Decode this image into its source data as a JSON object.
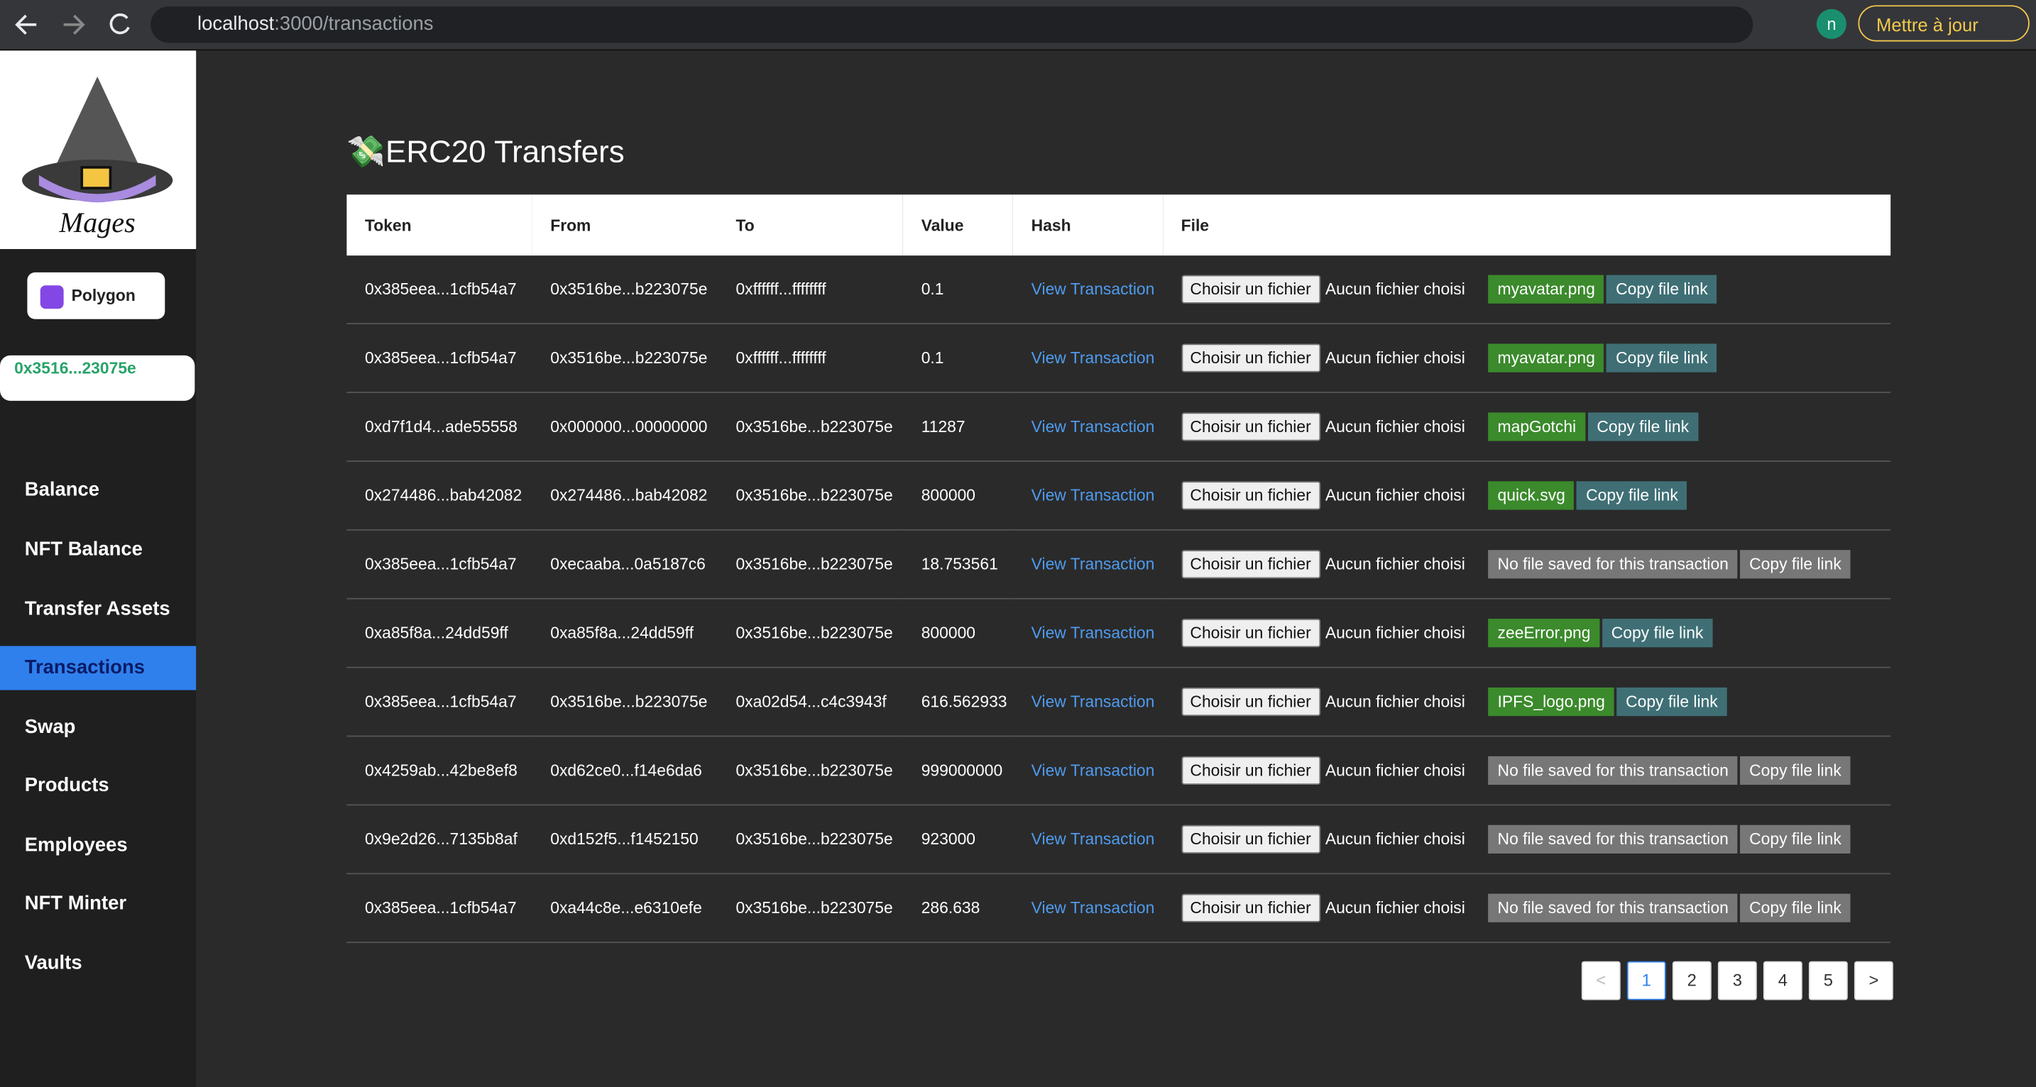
{
  "browser": {
    "url_host": "localhost",
    "url_path": ":3000/transactions",
    "update_button": "Mettre à jour",
    "profile_initial": "n"
  },
  "sidebar": {
    "logo_text": "Mages",
    "network": "Polygon",
    "address": "0x3516...23075e",
    "nav": [
      "Balance",
      "NFT Balance",
      "Transfer Assets",
      "Transactions",
      "Swap",
      "Products",
      "Employees",
      "NFT Minter",
      "Vaults"
    ],
    "active_nav": 3
  },
  "main": {
    "title": "ERC20 Transfers",
    "table": {
      "headers": [
        "Token",
        "From",
        "To",
        "Value",
        "Hash",
        "File"
      ],
      "rows": [
        {
          "token": "0x385eea...1cfb54a7",
          "from": "0x3516be...b223075e",
          "to": "0xffffff...ffffffff",
          "value": "0.1",
          "hash": "View Transaction",
          "choose": "Choisir un fichier",
          "no_file": "Aucun fichier choisi",
          "file": "myavatar.png",
          "file_saved": true,
          "copy": "Copy file link"
        },
        {
          "token": "0x385eea...1cfb54a7",
          "from": "0x3516be...b223075e",
          "to": "0xffffff...ffffffff",
          "value": "0.1",
          "hash": "View Transaction",
          "choose": "Choisir un fichier",
          "no_file": "Aucun fichier choisi",
          "file": "myavatar.png",
          "file_saved": true,
          "copy": "Copy file link"
        },
        {
          "token": "0xd7f1d4...ade55558",
          "from": "0x000000...00000000",
          "to": "0x3516be...b223075e",
          "value": "11287",
          "hash": "View Transaction",
          "choose": "Choisir un fichier",
          "no_file": "Aucun fichier choisi",
          "file": "mapGotchi",
          "file_saved": true,
          "copy": "Copy file link"
        },
        {
          "token": "0x274486...bab42082",
          "from": "0x274486...bab42082",
          "to": "0x3516be...b223075e",
          "value": "800000",
          "hash": "View Transaction",
          "choose": "Choisir un fichier",
          "no_file": "Aucun fichier choisi",
          "file": "quick.svg",
          "file_saved": true,
          "copy": "Copy file link"
        },
        {
          "token": "0x385eea...1cfb54a7",
          "from": "0xecaaba...0a5187c6",
          "to": "0x3516be...b223075e",
          "value": "18.753561",
          "hash": "View Transaction",
          "choose": "Choisir un fichier",
          "no_file": "Aucun fichier choisi",
          "file": "No file saved for this transaction",
          "file_saved": false,
          "copy": "Copy file link"
        },
        {
          "token": "0xa85f8a...24dd59ff",
          "from": "0xa85f8a...24dd59ff",
          "to": "0x3516be...b223075e",
          "value": "800000",
          "hash": "View Transaction",
          "choose": "Choisir un fichier",
          "no_file": "Aucun fichier choisi",
          "file": "zeeError.png",
          "file_saved": true,
          "copy": "Copy file link"
        },
        {
          "token": "0x385eea...1cfb54a7",
          "from": "0x3516be...b223075e",
          "to": "0xa02d54...c4c3943f",
          "value": "616.562933",
          "hash": "View Transaction",
          "choose": "Choisir un fichier",
          "no_file": "Aucun fichier choisi",
          "file": "IPFS_logo.png",
          "file_saved": true,
          "copy": "Copy file link"
        },
        {
          "token": "0x4259ab...42be8ef8",
          "from": "0xd62ce0...f14e6da6",
          "to": "0x3516be...b223075e",
          "value": "999000000",
          "hash": "View Transaction",
          "choose": "Choisir un fichier",
          "no_file": "Aucun fichier choisi",
          "file": "No file saved for this transaction",
          "file_saved": false,
          "copy": "Copy file link"
        },
        {
          "token": "0x9e2d26...7135b8af",
          "from": "0xd152f5...f1452150",
          "to": "0x3516be...b223075e",
          "value": "923000",
          "hash": "View Transaction",
          "choose": "Choisir un fichier",
          "no_file": "Aucun fichier choisi",
          "file": "No file saved for this transaction",
          "file_saved": false,
          "copy": "Copy file link"
        },
        {
          "token": "0x385eea...1cfb54a7",
          "from": "0xa44c8e...e6310efe",
          "to": "0x3516be...b223075e",
          "value": "286.638",
          "hash": "View Transaction",
          "choose": "Choisir un fichier",
          "no_file": "Aucun fichier choisi",
          "file": "No file saved for this transaction",
          "file_saved": false,
          "copy": "Copy file link"
        }
      ]
    },
    "pagination": {
      "prev": "<",
      "pages": [
        "1",
        "2",
        "3",
        "4",
        "5"
      ],
      "current": 0,
      "next": ">"
    }
  }
}
